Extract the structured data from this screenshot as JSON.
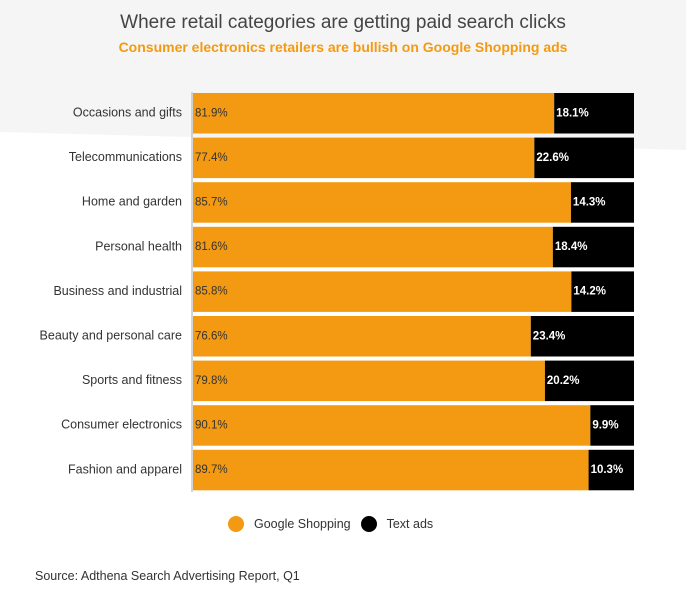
{
  "title": "Where retail categories are getting paid search clicks",
  "subtitle": "Consumer electronics retailers are bullish on Google Shopping ads",
  "source": "Source: Adthena Search Advertising Report, Q1",
  "colors": {
    "google_shopping": "#f39a12",
    "text_ads": "#000000",
    "subtitle": "#f39a12"
  },
  "chart_data": {
    "type": "bar",
    "orientation": "horizontal",
    "stacked": true,
    "categories": [
      "Occasions and gifts",
      "Telecommunications",
      "Home and garden",
      "Personal health",
      "Business and industrial",
      "Beauty and personal care",
      "Sports and fitness",
      "Consumer electronics",
      "Fashion and apparel"
    ],
    "series": [
      {
        "name": "Google Shopping",
        "values": [
          81.9,
          77.4,
          85.7,
          81.6,
          85.8,
          76.6,
          79.8,
          90.1,
          89.7
        ],
        "labels": [
          "81.9%",
          "77.4%",
          "85.7%",
          "81.6%",
          "85.8%",
          "76.6%",
          "79.8%",
          "90.1%",
          "89.7%"
        ]
      },
      {
        "name": "Text ads",
        "values": [
          18.1,
          22.6,
          14.3,
          18.4,
          14.2,
          23.4,
          20.2,
          9.9,
          10.3
        ],
        "labels": [
          "18.1%",
          "22.6%",
          "14.3%",
          "18.4%",
          "14.2%",
          "23.4%",
          "20.2%",
          "9.9%",
          "10.3%"
        ]
      }
    ],
    "xlim": [
      0,
      100
    ],
    "legend_position": "bottom-center",
    "grid": false
  }
}
